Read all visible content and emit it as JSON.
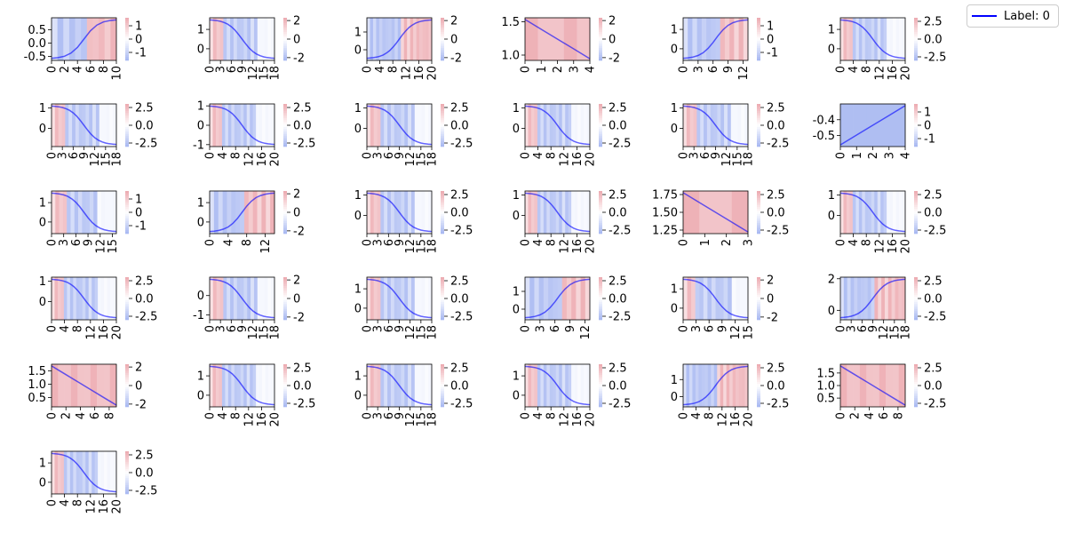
{
  "legend": {
    "label": "Label: 0",
    "color": "#0000ff"
  },
  "colors": {
    "line": "#0000ff",
    "positive": "#d6404e",
    "negative": "#3a5fe0",
    "axis": "#000000"
  },
  "chart_data": [
    {
      "type": "line",
      "n": 11,
      "ylim": [
        -0.65,
        0.95
      ],
      "yticks": [
        "0.5",
        "0.0",
        "-0.5"
      ],
      "ytick_values": [
        0.5,
        0.0,
        -0.5
      ],
      "xticks": [
        0,
        2,
        4,
        6,
        8,
        10
      ],
      "cticks": [
        "1",
        "0",
        "-1"
      ],
      "cticks_values": [
        1,
        0,
        -1
      ],
      "clim": [
        -1.6,
        1.6
      ],
      "shape": "rise"
    },
    {
      "type": "line",
      "n": 19,
      "ylim": [
        -0.6,
        1.6
      ],
      "yticks": [
        "1",
        "0"
      ],
      "ytick_values": [
        1,
        0
      ],
      "xticks": [
        0,
        3,
        6,
        9,
        12,
        15,
        18
      ],
      "cticks": [
        "2",
        "0",
        "-2"
      ],
      "cticks_values": [
        2,
        0,
        -2
      ],
      "clim": [
        -2.3,
        2.3
      ],
      "shape": "fall"
    },
    {
      "type": "line",
      "n": 21,
      "ylim": [
        -0.6,
        1.8
      ],
      "yticks": [
        "1",
        "0"
      ],
      "ytick_values": [
        1,
        0
      ],
      "xticks": [
        0,
        4,
        8,
        12,
        16,
        20
      ],
      "cticks": [
        "2",
        "0",
        "-2"
      ],
      "cticks_values": [
        2,
        0,
        -2
      ],
      "clim": [
        -2.3,
        2.3
      ],
      "shape": "rise"
    },
    {
      "type": "line",
      "n": 5,
      "ylim": [
        0.92,
        1.56
      ],
      "yticks": [
        "1.5",
        "1.0"
      ],
      "ytick_values": [
        1.5,
        1.0
      ],
      "xticks": [
        0,
        1,
        2,
        3,
        4
      ],
      "cticks": [
        "2",
        "0",
        "-2"
      ],
      "cticks_values": [
        2,
        0,
        -2
      ],
      "clim": [
        -2.3,
        2.3
      ],
      "shape": "linefall"
    },
    {
      "type": "line",
      "n": 14,
      "ylim": [
        -0.6,
        1.6
      ],
      "yticks": [
        "1",
        "0"
      ],
      "ytick_values": [
        1,
        0
      ],
      "xticks": [
        0,
        3,
        6,
        9,
        12
      ],
      "cticks": [
        "1",
        "0",
        "-1"
      ],
      "cticks_values": [
        1,
        0,
        -1
      ],
      "clim": [
        -1.6,
        1.6
      ],
      "shape": "rise"
    },
    {
      "type": "line",
      "n": 21,
      "ylim": [
        -0.6,
        1.6
      ],
      "yticks": [
        "1",
        "0"
      ],
      "ytick_values": [
        1,
        0
      ],
      "xticks": [
        0,
        4,
        8,
        12,
        16,
        20
      ],
      "cticks": [
        "2.5",
        "0.0",
        "-2.5"
      ],
      "cticks_values": [
        2.5,
        0,
        -2.5
      ],
      "clim": [
        -3,
        3
      ],
      "shape": "fall"
    },
    {
      "type": "line",
      "n": 19,
      "ylim": [
        -0.9,
        1.2
      ],
      "yticks": [
        "1",
        "0"
      ],
      "ytick_values": [
        1,
        0
      ],
      "xticks": [
        0,
        3,
        6,
        9,
        12,
        15,
        18
      ],
      "cticks": [
        "2.5",
        "0.0",
        "-2.5"
      ],
      "cticks_values": [
        2.5,
        0,
        -2.5
      ],
      "clim": [
        -3,
        3
      ],
      "shape": "fall"
    },
    {
      "type": "line",
      "n": 21,
      "ylim": [
        -1.1,
        1.1
      ],
      "yticks": [
        "1",
        "0",
        "-1"
      ],
      "ytick_values": [
        1,
        0,
        -1
      ],
      "xticks": [
        0,
        4,
        8,
        12,
        16,
        20
      ],
      "cticks": [
        "2.5",
        "0.0",
        "-2.5"
      ],
      "cticks_values": [
        2.5,
        0,
        -2.5
      ],
      "clim": [
        -3,
        3
      ],
      "shape": "fall"
    },
    {
      "type": "line",
      "n": 19,
      "ylim": [
        -0.9,
        1.2
      ],
      "yticks": [
        "1",
        "0"
      ],
      "ytick_values": [
        1,
        0
      ],
      "xticks": [
        0,
        3,
        6,
        9,
        12,
        15,
        18
      ],
      "cticks": [
        "2.5",
        "0.0",
        "-2.5"
      ],
      "cticks_values": [
        2.5,
        0,
        -2.5
      ],
      "clim": [
        -3,
        3
      ],
      "shape": "fall"
    },
    {
      "type": "line",
      "n": 21,
      "ylim": [
        -0.9,
        1.2
      ],
      "yticks": [
        "1",
        "0"
      ],
      "ytick_values": [
        1,
        0
      ],
      "xticks": [
        0,
        4,
        8,
        12,
        16,
        20
      ],
      "cticks": [
        "2.5",
        "0.0",
        "-2.5"
      ],
      "cticks_values": [
        2.5,
        0,
        -2.5
      ],
      "clim": [
        -3,
        3
      ],
      "shape": "fall"
    },
    {
      "type": "line",
      "n": 19,
      "ylim": [
        -0.9,
        1.2
      ],
      "yticks": [
        "1",
        "0"
      ],
      "ytick_values": [
        1,
        0
      ],
      "xticks": [
        0,
        3,
        6,
        9,
        12,
        15,
        18
      ],
      "cticks": [
        "2.5",
        "0.0",
        "-2.5"
      ],
      "cticks_values": [
        2.5,
        0,
        -2.5
      ],
      "clim": [
        -3,
        3
      ],
      "shape": "fall"
    },
    {
      "type": "line",
      "n": 5,
      "ylim": [
        -0.57,
        -0.3
      ],
      "yticks": [
        "-0.4",
        "-0.5"
      ],
      "ytick_values": [
        -0.4,
        -0.5
      ],
      "xticks": [
        0,
        1,
        2,
        3,
        4
      ],
      "cticks": [
        "1",
        "0",
        "-1"
      ],
      "cticks_values": [
        1,
        0,
        -1
      ],
      "clim": [
        -1.6,
        1.6
      ],
      "shape": "linerise"
    },
    {
      "type": "line",
      "n": 17,
      "ylim": [
        -0.6,
        1.6
      ],
      "yticks": [
        "1",
        "0"
      ],
      "ytick_values": [
        1,
        0
      ],
      "xticks": [
        0,
        3,
        6,
        9,
        12,
        15
      ],
      "cticks": [
        "1",
        "0",
        "-1"
      ],
      "cticks_values": [
        1,
        0,
        -1
      ],
      "clim": [
        -1.6,
        1.6
      ],
      "shape": "fall"
    },
    {
      "type": "line",
      "n": 15,
      "ylim": [
        -0.6,
        1.6
      ],
      "yticks": [
        "1",
        "0"
      ],
      "ytick_values": [
        1,
        0
      ],
      "xticks": [
        0,
        4,
        8,
        12
      ],
      "cticks": [
        "2",
        "0",
        "-2"
      ],
      "cticks_values": [
        2,
        0,
        -2
      ],
      "clim": [
        -2.3,
        2.3
      ],
      "shape": "rise"
    },
    {
      "type": "line",
      "n": 19,
      "ylim": [
        -0.9,
        1.2
      ],
      "yticks": [
        "1",
        "0"
      ],
      "ytick_values": [
        1,
        0
      ],
      "xticks": [
        0,
        3,
        6,
        9,
        12,
        15,
        18
      ],
      "cticks": [
        "2.5",
        "0.0",
        "-2.5"
      ],
      "cticks_values": [
        2.5,
        0,
        -2.5
      ],
      "clim": [
        -3,
        3
      ],
      "shape": "fall"
    },
    {
      "type": "line",
      "n": 21,
      "ylim": [
        -0.9,
        1.2
      ],
      "yticks": [
        "1",
        "0"
      ],
      "ytick_values": [
        1,
        0
      ],
      "xticks": [
        0,
        4,
        8,
        12,
        16,
        20
      ],
      "cticks": [
        "2.5",
        "0.0",
        "-2.5"
      ],
      "cticks_values": [
        2.5,
        0,
        -2.5
      ],
      "clim": [
        -3,
        3
      ],
      "shape": "fall"
    },
    {
      "type": "line",
      "n": 4,
      "ylim": [
        1.2,
        1.8
      ],
      "yticks": [
        "1.75",
        "1.50",
        "1.25"
      ],
      "ytick_values": [
        1.75,
        1.5,
        1.25
      ],
      "xticks": [
        0,
        1,
        2,
        3
      ],
      "cticks": [
        "2.5",
        "0.0",
        "-2.5"
      ],
      "cticks_values": [
        2.5,
        0,
        -2.5
      ],
      "clim": [
        -3,
        3
      ],
      "shape": "linefall"
    },
    {
      "type": "line",
      "n": 21,
      "ylim": [
        -0.9,
        1.2
      ],
      "yticks": [
        "1",
        "0"
      ],
      "ytick_values": [
        1,
        0
      ],
      "xticks": [
        0,
        4,
        8,
        12,
        16,
        20
      ],
      "cticks": [
        "2.5",
        "0.0",
        "-2.5"
      ],
      "cticks_values": [
        2.5,
        0,
        -2.5
      ],
      "clim": [
        -3,
        3
      ],
      "shape": "fall"
    },
    {
      "type": "line",
      "n": 21,
      "ylim": [
        -0.9,
        1.2
      ],
      "yticks": [
        "1",
        "0"
      ],
      "ytick_values": [
        1,
        0
      ],
      "xticks": [
        0,
        4,
        8,
        12,
        16,
        20
      ],
      "cticks": [
        "2.5",
        "0.0",
        "-2.5"
      ],
      "cticks_values": [
        2.5,
        0,
        -2.5
      ],
      "clim": [
        -3,
        3
      ],
      "shape": "fall"
    },
    {
      "type": "line",
      "n": 19,
      "ylim": [
        -1.25,
        0.95
      ],
      "yticks": [
        "0",
        "-1"
      ],
      "ytick_values": [
        0,
        -1
      ],
      "xticks": [
        0,
        3,
        6,
        9,
        12,
        15,
        18
      ],
      "cticks": [
        "2",
        "0",
        "-2"
      ],
      "cticks_values": [
        2,
        0,
        -2
      ],
      "clim": [
        -2.3,
        2.3
      ],
      "shape": "fall"
    },
    {
      "type": "line",
      "n": 19,
      "ylim": [
        -0.6,
        1.6
      ],
      "yticks": [
        "1",
        "0"
      ],
      "ytick_values": [
        1,
        0
      ],
      "xticks": [
        0,
        3,
        6,
        9,
        12,
        15,
        18
      ],
      "cticks": [
        "2.5",
        "0.0",
        "-2.5"
      ],
      "cticks_values": [
        2.5,
        0,
        -2.5
      ],
      "clim": [
        -3,
        3
      ],
      "shape": "fall"
    },
    {
      "type": "line",
      "n": 14,
      "ylim": [
        -0.6,
        1.8
      ],
      "yticks": [
        "1",
        "0"
      ],
      "ytick_values": [
        1,
        0
      ],
      "xticks": [
        0,
        3,
        6,
        9,
        12
      ],
      "cticks": [
        "2.5",
        "0.0",
        "-2.5"
      ],
      "cticks_values": [
        2.5,
        0,
        -2.5
      ],
      "clim": [
        -3,
        3
      ],
      "shape": "rise"
    },
    {
      "type": "line",
      "n": 16,
      "ylim": [
        -0.6,
        1.6
      ],
      "yticks": [
        "1",
        "0"
      ],
      "ytick_values": [
        1,
        0
      ],
      "xticks": [
        0,
        3,
        6,
        9,
        12,
        15
      ],
      "cticks": [
        "2",
        "0",
        "-2"
      ],
      "cticks_values": [
        2,
        0,
        -2
      ],
      "clim": [
        -2.3,
        2.3
      ],
      "shape": "fall"
    },
    {
      "type": "line",
      "n": 19,
      "ylim": [
        -0.6,
        2.1
      ],
      "yticks": [
        "2",
        "0"
      ],
      "ytick_values": [
        2,
        0
      ],
      "xticks": [
        0,
        3,
        6,
        9,
        12,
        15,
        18
      ],
      "cticks": [
        "2.5",
        "0.0",
        "-2.5"
      ],
      "cticks_values": [
        2.5,
        0,
        -2.5
      ],
      "clim": [
        -3,
        3
      ],
      "shape": "rise"
    },
    {
      "type": "line",
      "n": 10,
      "ylim": [
        0.15,
        1.75
      ],
      "yticks": [
        "1.5",
        "1.0",
        "0.5"
      ],
      "ytick_values": [
        1.5,
        1.0,
        0.5
      ],
      "xticks": [
        0,
        2,
        4,
        6,
        8
      ],
      "cticks": [
        "2",
        "0",
        "-2"
      ],
      "cticks_values": [
        2,
        0,
        -2
      ],
      "clim": [
        -2.3,
        2.3
      ],
      "shape": "linefall"
    },
    {
      "type": "line",
      "n": 21,
      "ylim": [
        -0.6,
        1.6
      ],
      "yticks": [
        "1",
        "0"
      ],
      "ytick_values": [
        1,
        0
      ],
      "xticks": [
        0,
        4,
        8,
        12,
        16,
        20
      ],
      "cticks": [
        "2.5",
        "0.0",
        "-2.5"
      ],
      "cticks_values": [
        2.5,
        0,
        -2.5
      ],
      "clim": [
        -3,
        3
      ],
      "shape": "fall"
    },
    {
      "type": "line",
      "n": 19,
      "ylim": [
        -0.6,
        1.6
      ],
      "yticks": [
        "1",
        "0"
      ],
      "ytick_values": [
        1,
        0
      ],
      "xticks": [
        0,
        3,
        6,
        9,
        12,
        15,
        18
      ],
      "cticks": [
        "2.5",
        "0.0",
        "-2.5"
      ],
      "cticks_values": [
        2.5,
        0,
        -2.5
      ],
      "clim": [
        -3,
        3
      ],
      "shape": "fall"
    },
    {
      "type": "line",
      "n": 21,
      "ylim": [
        -0.6,
        1.6
      ],
      "yticks": [
        "1",
        "0"
      ],
      "ytick_values": [
        1,
        0
      ],
      "xticks": [
        0,
        4,
        8,
        12,
        16,
        20
      ],
      "cticks": [
        "2.5",
        "0.0",
        "-2.5"
      ],
      "cticks_values": [
        2.5,
        0,
        -2.5
      ],
      "clim": [
        -3,
        3
      ],
      "shape": "fall"
    },
    {
      "type": "line",
      "n": 21,
      "ylim": [
        -0.6,
        1.9
      ],
      "yticks": [
        "1",
        "0"
      ],
      "ytick_values": [
        1,
        0
      ],
      "xticks": [
        0,
        4,
        8,
        12,
        16,
        20
      ],
      "cticks": [
        "2.5",
        "0.0",
        "-2.5"
      ],
      "cticks_values": [
        2.5,
        0,
        -2.5
      ],
      "clim": [
        -3,
        3
      ],
      "shape": "rise"
    },
    {
      "type": "line",
      "n": 10,
      "ylim": [
        0.15,
        1.85
      ],
      "yticks": [
        "1.5",
        "1.0",
        "0.5"
      ],
      "ytick_values": [
        1.5,
        1.0,
        0.5
      ],
      "xticks": [
        0,
        2,
        4,
        6,
        8
      ],
      "cticks": [
        "2.5",
        "0.0",
        "-2.5"
      ],
      "cticks_values": [
        2.5,
        0,
        -2.5
      ],
      "clim": [
        -3,
        3
      ],
      "shape": "linefall"
    },
    {
      "type": "line",
      "n": 21,
      "ylim": [
        -0.6,
        1.6
      ],
      "yticks": [
        "1",
        "0"
      ],
      "ytick_values": [
        1,
        0
      ],
      "xticks": [
        0,
        4,
        8,
        12,
        16,
        20
      ],
      "cticks": [
        "2.5",
        "0.0",
        "-2.5"
      ],
      "cticks_values": [
        2.5,
        0,
        -2.5
      ],
      "clim": [
        -3,
        3
      ],
      "shape": "fall"
    }
  ]
}
